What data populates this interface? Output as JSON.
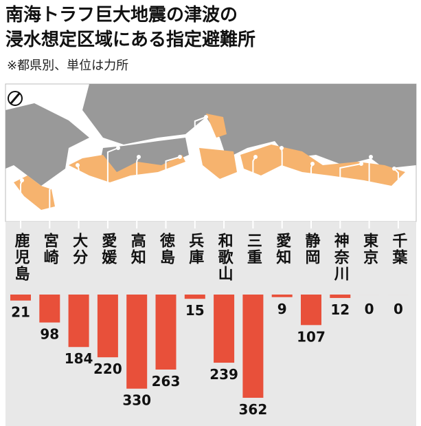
{
  "chart_data": {
    "type": "bar",
    "title": "南海トラフ巨大地震の津波の",
    "title_line2": "浸水想定区域にある指定避難所",
    "subtitle": "※都県別、単位は力所",
    "categories": [
      "鹿児島",
      "宮崎",
      "大分",
      "愛媛",
      "高知",
      "徳島",
      "兵庫",
      "和歌山",
      "三重",
      "愛知",
      "静岡",
      "神奈川",
      "東京",
      "千葉"
    ],
    "values": [
      21,
      98,
      184,
      220,
      330,
      263,
      15,
      239,
      362,
      9,
      107,
      12,
      0,
      0
    ],
    "color": "#e8503a"
  }
}
